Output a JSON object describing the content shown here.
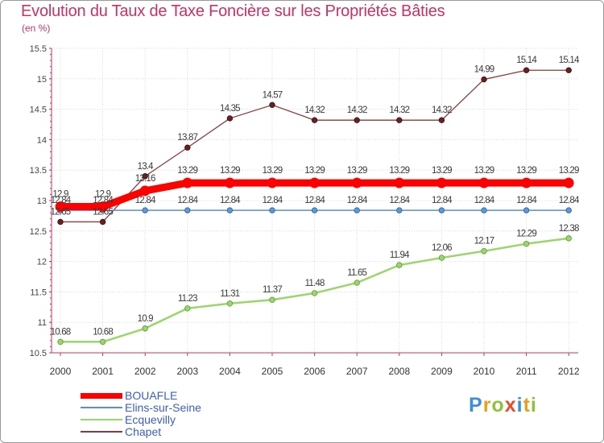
{
  "chart_data": {
    "type": "line",
    "title": "Evolution du Taux de Taxe Foncière sur les Propriétés Bâties",
    "subtitle": "(en %)",
    "xlabel": "",
    "ylabel": "",
    "x": [
      "2000",
      "2001",
      "2002",
      "2003",
      "2004",
      "2005",
      "2006",
      "2007",
      "2008",
      "2009",
      "2010",
      "2011",
      "2012"
    ],
    "ylim": [
      10.5,
      15.5
    ],
    "yticks": [
      "10.5",
      "11",
      "11.5",
      "12",
      "12.5",
      "13",
      "13.5",
      "14",
      "14.5",
      "15",
      "15.5"
    ],
    "grid": true,
    "legend_position": "bottom-left",
    "series": [
      {
        "name": "BOUAFLE",
        "color": "#ff0000",
        "values": [
          12.9,
          12.9,
          13.16,
          13.29,
          13.29,
          13.29,
          13.29,
          13.29,
          13.29,
          13.29,
          13.29,
          13.29,
          13.29
        ],
        "labels": [
          "12.9",
          "12.9",
          "13.16",
          "13.29",
          "13.29",
          "13.29",
          "13.29",
          "13.29",
          "13.29",
          "13.29",
          "13.29",
          "13.29",
          "13.29"
        ]
      },
      {
        "name": "Elins-sur-Seine",
        "color": "#5b8fc9",
        "values": [
          12.84,
          12.84,
          12.84,
          12.84,
          12.84,
          12.84,
          12.84,
          12.84,
          12.84,
          12.84,
          12.84,
          12.84,
          12.84
        ],
        "labels": [
          "12.84",
          "12.84",
          "12.84",
          "12.84",
          "12.84",
          "12.84",
          "12.84",
          "12.84",
          "12.84",
          "12.84",
          "12.84",
          "12.84",
          "12.84"
        ]
      },
      {
        "name": "Ecquevilly",
        "color": "#99d66b",
        "values": [
          10.68,
          10.68,
          10.9,
          11.23,
          11.31,
          11.37,
          11.48,
          11.65,
          11.94,
          12.06,
          12.17,
          12.29,
          12.38
        ],
        "labels": [
          "10.68",
          "10.68",
          "10.9",
          "11.23",
          "11.31",
          "11.37",
          "11.48",
          "11.65",
          "11.94",
          "12.06",
          "12.17",
          "12.29",
          "12.38"
        ]
      },
      {
        "name": "Chapet",
        "color": "#8a3a3a",
        "values": [
          12.65,
          12.65,
          13.4,
          13.87,
          14.35,
          14.57,
          14.32,
          14.32,
          14.32,
          14.32,
          14.99,
          15.14,
          15.14
        ],
        "labels": [
          "12.65",
          "12.65",
          "13.4",
          "13.87",
          "14.35",
          "14.57",
          "14.32",
          "14.32",
          "14.32",
          "14.32",
          "14.99",
          "15.14",
          "15.14"
        ]
      }
    ]
  },
  "logo": {
    "letters": [
      "P",
      "r",
      "o",
      "x",
      "i",
      "t",
      "i"
    ],
    "colors": [
      "#3a8fd9",
      "#e8a020",
      "#8ac43a",
      "#e84a2a",
      "#3a8fd9",
      "#e8a020",
      "#8ac43a"
    ]
  }
}
